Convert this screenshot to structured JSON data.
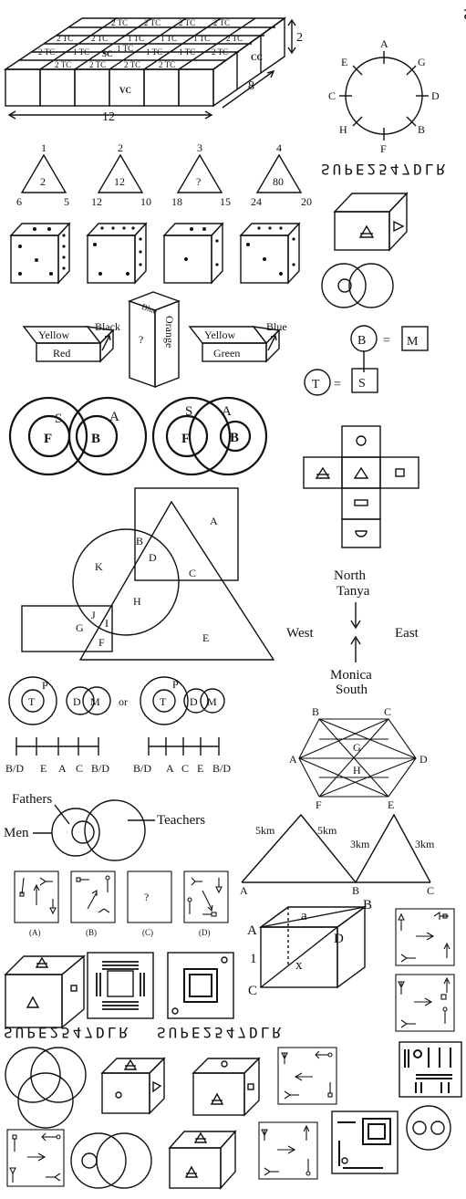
{
  "page_title": "",
  "cube_block": {
    "cube_labels": {
      "two": "2 TC",
      "one": "1 TC",
      "sc": "SC",
      "cc": "CC",
      "vc": "VC"
    },
    "dims": {
      "height": "2",
      "depth": "8",
      "length": "12"
    }
  },
  "mirror_text": "SUPE2547DLR",
  "compass": {
    "a": "A",
    "b": "B",
    "c": "C",
    "d": "D",
    "e": "E",
    "f": "F",
    "g": "G",
    "h": "H"
  },
  "triangles": [
    {
      "top": "1",
      "center": "2",
      "left": "6",
      "right": "5"
    },
    {
      "top": "2",
      "center": "12",
      "left": "12",
      "right": "10"
    },
    {
      "top": "3",
      "center": "?",
      "left": "18",
      "right": "15"
    },
    {
      "top": "4",
      "center": "80",
      "left": "24",
      "right": "20"
    }
  ],
  "colour_blocks": {
    "block1": {
      "top": "Yellow",
      "front": "Red",
      "side": "Black"
    },
    "block2": {
      "top": "Blue",
      "front": "?",
      "side": "Orange"
    },
    "block3": {
      "top": "Yellow",
      "front": "Green",
      "side": "Blue"
    }
  },
  "code_diagram": {
    "b": "B",
    "m": "M",
    "t": "T",
    "s": "S",
    "eq": "="
  },
  "circle_sets": {
    "s": "S",
    "a": "A",
    "f": "F",
    "b": "B"
  },
  "region_diagram": {
    "a": "A",
    "b": "B",
    "c": "C",
    "d": "D",
    "e": "E",
    "f": "F",
    "g": "G",
    "h": "H",
    "i": "I",
    "j": "J",
    "k": "K"
  },
  "direction": {
    "north": "North",
    "tanya": "Tanya",
    "west": "West",
    "east": "East",
    "monica": "Monica",
    "south": "South"
  },
  "tdm_sets": {
    "t": "T",
    "p": "P",
    "d": "D",
    "m": "M",
    "or": "or"
  },
  "number_lines": [
    [
      "B/D",
      "E",
      "A",
      "C",
      "B/D"
    ],
    [
      "B/D",
      "A",
      "C",
      "E",
      "B/D"
    ]
  ],
  "hexagon": {
    "a": "A",
    "b": "B",
    "c": "C",
    "d": "D",
    "e": "E",
    "f": "F",
    "g": "G",
    "h": "H"
  },
  "venn_people": {
    "fathers": "Fathers",
    "men": "Men",
    "teachers": "Teachers"
  },
  "route": {
    "a": "A",
    "b": "B",
    "c": "C",
    "d1": "5km",
    "d2": "5km",
    "d3": "3km",
    "d4": "3km"
  },
  "options": {
    "a": "(A)",
    "b": "(B)",
    "c": "(C)",
    "d": "(D)",
    "q": "?"
  },
  "cuboid": {
    "a": "A",
    "b": "B",
    "c": "C",
    "d": "D",
    "edge_a": "a",
    "edge_1": "1",
    "edge_x": "x"
  }
}
